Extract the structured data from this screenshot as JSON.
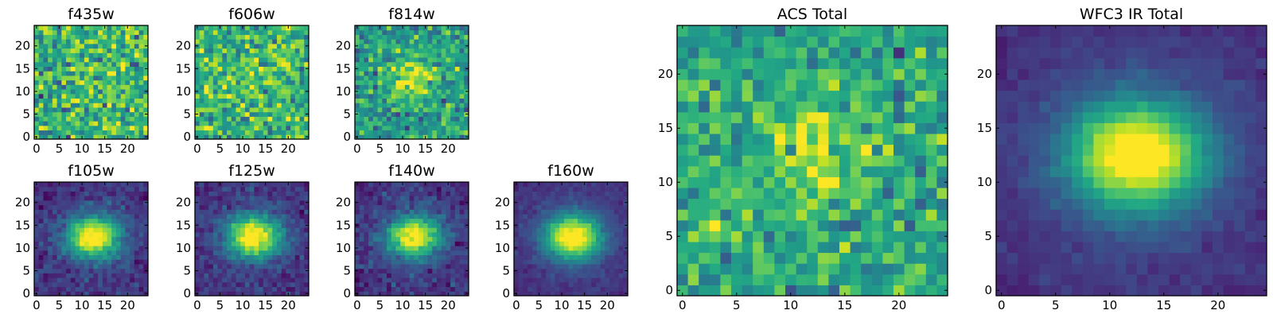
{
  "chart_data": [
    {
      "type": "heatmap",
      "title": "f435w",
      "profile": "noise",
      "xlim": [
        0,
        24
      ],
      "ylim": [
        0,
        24
      ],
      "xticks": [
        0,
        5,
        10,
        15,
        20
      ],
      "yticks": [
        0,
        5,
        10,
        15,
        20
      ],
      "colormap": "viridis",
      "grid": false
    },
    {
      "type": "heatmap",
      "title": "f606w",
      "profile": "noise",
      "xlim": [
        0,
        24
      ],
      "ylim": [
        0,
        24
      ],
      "xticks": [
        0,
        5,
        10,
        15,
        20
      ],
      "yticks": [
        0,
        5,
        10,
        15,
        20
      ],
      "colormap": "viridis",
      "grid": false
    },
    {
      "type": "heatmap",
      "title": "f814w",
      "profile": "faint_source",
      "xlim": [
        0,
        24
      ],
      "ylim": [
        0,
        24
      ],
      "xticks": [
        0,
        5,
        10,
        15,
        20
      ],
      "yticks": [
        0,
        5,
        10,
        15,
        20
      ],
      "colormap": "viridis",
      "grid": false
    },
    {
      "type": "heatmap",
      "title": "f105w",
      "profile": "source",
      "xlim": [
        0,
        24
      ],
      "ylim": [
        0,
        24
      ],
      "xticks": [
        0,
        5,
        10,
        15,
        20
      ],
      "yticks": [
        0,
        5,
        10,
        15,
        20
      ],
      "colormap": "viridis",
      "grid": false
    },
    {
      "type": "heatmap",
      "title": "f125w",
      "profile": "source",
      "xlim": [
        0,
        24
      ],
      "ylim": [
        0,
        24
      ],
      "xticks": [
        0,
        5,
        10,
        15,
        20
      ],
      "yticks": [
        0,
        5,
        10,
        15,
        20
      ],
      "colormap": "viridis",
      "grid": false
    },
    {
      "type": "heatmap",
      "title": "f140w",
      "profile": "source",
      "xlim": [
        0,
        24
      ],
      "ylim": [
        0,
        24
      ],
      "xticks": [
        0,
        5,
        10,
        15,
        20
      ],
      "yticks": [
        0,
        5,
        10,
        15,
        20
      ],
      "colormap": "viridis",
      "grid": false
    },
    {
      "type": "heatmap",
      "title": "f160w",
      "profile": "smooth_source",
      "xlim": [
        0,
        24
      ],
      "ylim": [
        0,
        24
      ],
      "xticks": [
        0,
        5,
        10,
        15,
        20
      ],
      "yticks": [
        0,
        5,
        10,
        15,
        20
      ],
      "colormap": "viridis",
      "grid": false
    },
    {
      "type": "heatmap",
      "title": "ACS Total",
      "profile": "acs_total",
      "xlim": [
        0,
        24
      ],
      "ylim": [
        0,
        24
      ],
      "xticks": [
        0,
        5,
        10,
        15,
        20
      ],
      "yticks": [
        0,
        5,
        10,
        15,
        20
      ],
      "colormap": "viridis",
      "grid": false
    },
    {
      "type": "heatmap",
      "title": "WFC3 IR Total",
      "profile": "ir_total",
      "xlim": [
        0,
        24
      ],
      "ylim": [
        0,
        24
      ],
      "xticks": [
        0,
        5,
        10,
        15,
        20
      ],
      "yticks": [
        0,
        5,
        10,
        15,
        20
      ],
      "colormap": "viridis",
      "grid": false
    }
  ],
  "source_center": {
    "x": 12.5,
    "y": 12.5
  }
}
